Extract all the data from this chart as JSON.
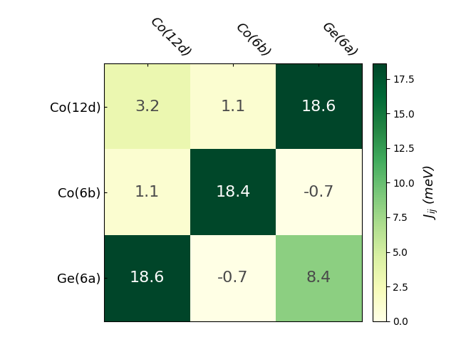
{
  "labels": [
    "Co(12d)",
    "Co(6b)",
    "Ge(6a)"
  ],
  "matrix": [
    [
      3.2,
      1.1,
      18.6
    ],
    [
      1.1,
      18.4,
      -0.7
    ],
    [
      18.6,
      -0.7,
      8.4
    ]
  ],
  "vmin": 0.0,
  "vmax": 18.6,
  "cmap": "YlGn",
  "colorbar_label": "$J_{ij}$ (meV)",
  "colorbar_ticks": [
    0.0,
    2.5,
    5.0,
    7.5,
    10.0,
    12.5,
    15.0,
    17.5
  ],
  "text_threshold": 10.0,
  "text_color_light": "#4a4a4a",
  "text_color_dark": "white",
  "fontsize_annot": 16,
  "fontsize_labels": 13,
  "fontsize_colorbar": 13,
  "figure_width": 6.4,
  "figure_height": 4.8,
  "dpi": 100
}
